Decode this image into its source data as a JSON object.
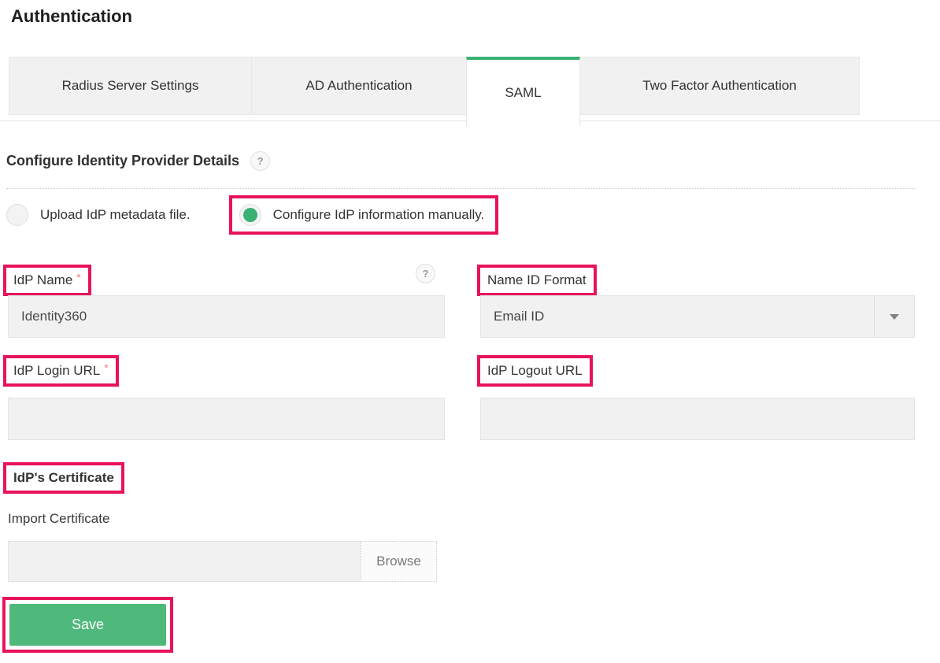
{
  "window": {
    "title": "Authentication"
  },
  "tabs": [
    {
      "label": "Radius Server Settings",
      "active": false
    },
    {
      "label": "AD Authentication",
      "active": false
    },
    {
      "label": "SAML",
      "active": true
    },
    {
      "label": "Two Factor Authentication",
      "active": false
    }
  ],
  "idp_section": {
    "heading": "Configure Identity Provider Details",
    "heading_help_icon": "?",
    "radio_upload": {
      "label": "Upload IdP metadata file.",
      "selected": false
    },
    "radio_manual": {
      "label": "Configure IdP information manually.",
      "selected": true
    }
  },
  "fields": {
    "idp_name": {
      "label": "IdP Name",
      "required_mark": "*",
      "value": "Identity360",
      "help_icon": "?"
    },
    "name_id_format": {
      "label": "Name ID Format",
      "selected_option": "Email ID"
    },
    "idp_login_url": {
      "label": "IdP Login URL",
      "required_mark": "*",
      "value": ""
    },
    "idp_logout_url": {
      "label": "IdP Logout URL",
      "value": ""
    },
    "idp_certificate": {
      "section_label": "IdP's Certificate",
      "import_label": "Import Certificate",
      "file_value": "",
      "browse_label": "Browse"
    }
  },
  "actions": {
    "save_label": "Save"
  },
  "colors": {
    "accent_green": "#3bb073",
    "save_green": "#4fb87b",
    "annotation_red": "#e8135b",
    "input_background": "#f1f1f2",
    "tab_background": "#f1f1f1"
  }
}
